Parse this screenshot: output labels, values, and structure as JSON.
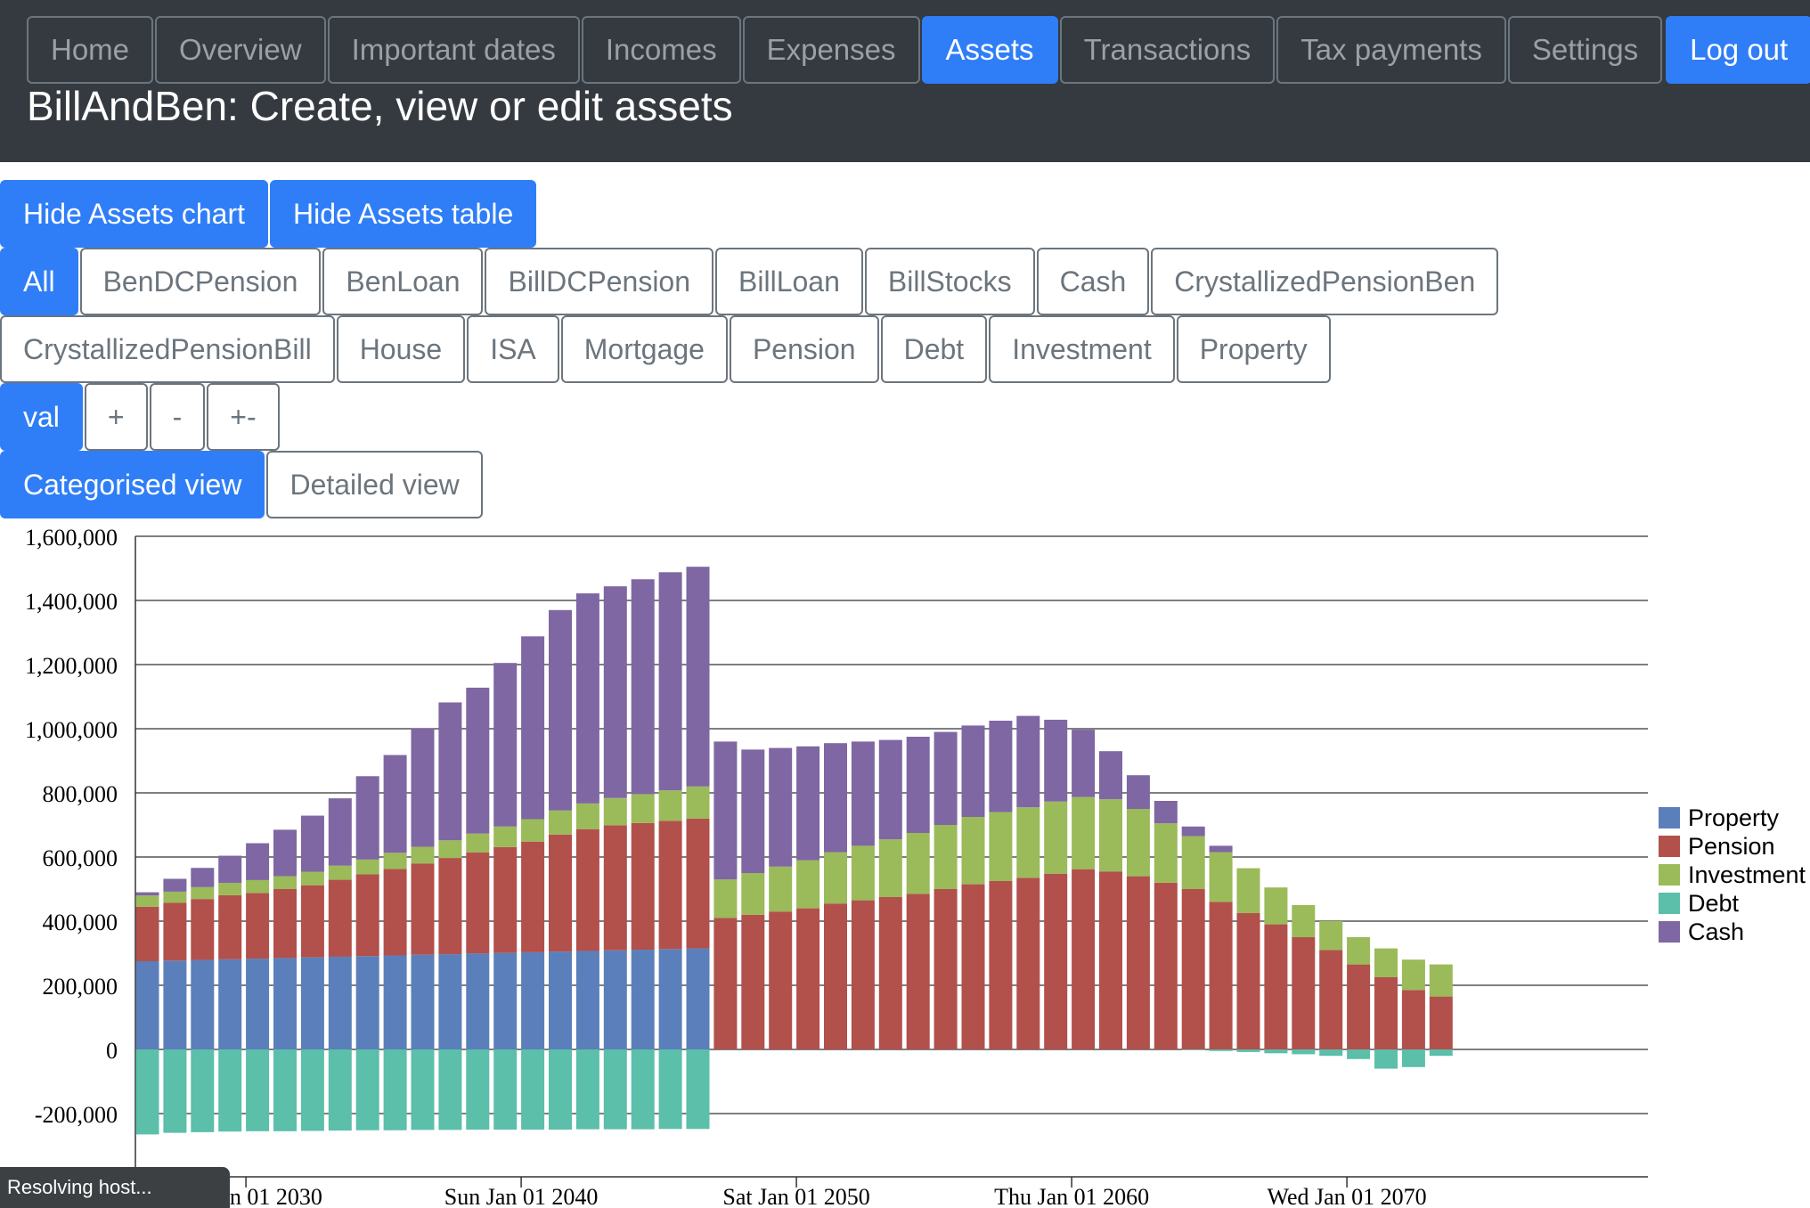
{
  "nav": {
    "items": [
      {
        "label": "Home",
        "active": false
      },
      {
        "label": "Overview",
        "active": false
      },
      {
        "label": "Important dates",
        "active": false
      },
      {
        "label": "Incomes",
        "active": false
      },
      {
        "label": "Expenses",
        "active": false
      },
      {
        "label": "Assets",
        "active": true
      },
      {
        "label": "Transactions",
        "active": false
      },
      {
        "label": "Tax payments",
        "active": false
      },
      {
        "label": "Settings",
        "active": false
      }
    ],
    "logout_label": "Log out"
  },
  "page_title": "BillAndBen: Create, view or edit assets",
  "toggles": {
    "hide_chart": "Hide Assets chart",
    "hide_table": "Hide Assets table"
  },
  "filters": {
    "row1": [
      "All",
      "BenDCPension",
      "BenLoan",
      "BillDCPension",
      "BillLoan",
      "BillStocks",
      "Cash",
      "CrystallizedPensionBen"
    ],
    "row2": [
      "CrystallizedPensionBill",
      "House",
      "ISA",
      "Mortgage",
      "Pension",
      "Debt",
      "Investment",
      "Property"
    ],
    "selected": "All"
  },
  "value_modes": {
    "items": [
      "val",
      "+",
      "-",
      "+-"
    ],
    "selected": "val"
  },
  "views": {
    "categorised": "Categorised view",
    "detailed": "Detailed view",
    "selected": "categorised"
  },
  "chart_data": {
    "type": "bar",
    "stacked": true,
    "x_start_year": 2026,
    "years": [
      2026,
      2027,
      2028,
      2029,
      2030,
      2031,
      2032,
      2033,
      2034,
      2035,
      2036,
      2037,
      2038,
      2039,
      2040,
      2041,
      2042,
      2043,
      2044,
      2045,
      2046,
      2047,
      2048,
      2049,
      2050,
      2051,
      2052,
      2053,
      2054,
      2055,
      2056,
      2057,
      2058,
      2059,
      2060,
      2061,
      2062,
      2063,
      2064,
      2065,
      2066,
      2067,
      2068,
      2069,
      2070,
      2071,
      2072,
      2073,
      2074,
      2075,
      2076,
      2077,
      2078,
      2079,
      2080,
      2081,
      2082
    ],
    "ylim": [
      -400000,
      1600000
    ],
    "yticks": [
      {
        "value": 1600000,
        "label": "1,600,000"
      },
      {
        "value": 1400000,
        "label": "1,400,000"
      },
      {
        "value": 1200000,
        "label": "1,200,000"
      },
      {
        "value": 1000000,
        "label": "1,000,000"
      },
      {
        "value": 800000,
        "label": "800,000"
      },
      {
        "value": 600000,
        "label": "600,000"
      },
      {
        "value": 400000,
        "label": "400,000"
      },
      {
        "value": 200000,
        "label": "200,000"
      },
      {
        "value": 0,
        "label": "0"
      },
      {
        "value": -200000,
        "label": "-200,000"
      }
    ],
    "xticks": [
      {
        "year": 2030,
        "label": "Tue Jan 01 2030"
      },
      {
        "year": 2040,
        "label": "Sun Jan 01 2040"
      },
      {
        "year": 2050,
        "label": "Sat Jan 01 2050"
      },
      {
        "year": 2060,
        "label": "Thu Jan 01 2060"
      },
      {
        "year": 2070,
        "label": "Wed Jan 01 2070"
      }
    ],
    "legend_position": "right",
    "legend": [
      {
        "name": "Property",
        "color": "#5b7fba"
      },
      {
        "name": "Pension",
        "color": "#b2504c"
      },
      {
        "name": "Investment",
        "color": "#9bba59"
      },
      {
        "name": "Debt",
        "color": "#5bbfaa"
      },
      {
        "name": "Cash",
        "color": "#7e67a2"
      }
    ],
    "series": [
      {
        "name": "Property",
        "color": "#5b7fba",
        "values": [
          275000,
          277000,
          279000,
          281000,
          283000,
          285000,
          287000,
          289000,
          291000,
          293000,
          295000,
          297000,
          299000,
          301000,
          303000,
          305000,
          307000,
          309000,
          311000,
          313000,
          315000,
          0,
          0,
          0,
          0,
          0,
          0,
          0,
          0,
          0,
          0,
          0,
          0,
          0,
          0,
          0,
          0,
          0,
          0,
          0,
          0,
          0,
          0,
          0,
          0,
          0,
          0,
          0,
          0,
          0,
          0,
          0,
          0,
          0,
          0,
          0,
          0
        ]
      },
      {
        "name": "Pension",
        "color": "#b2504c",
        "values": [
          170000,
          180000,
          190000,
          200000,
          205000,
          215000,
          225000,
          240000,
          255000,
          270000,
          285000,
          300000,
          315000,
          330000,
          345000,
          365000,
          380000,
          390000,
          395000,
          400000,
          405000,
          410000,
          420000,
          430000,
          440000,
          455000,
          465000,
          475000,
          485000,
          500000,
          515000,
          525000,
          535000,
          548000,
          562000,
          555000,
          540000,
          520000,
          500000,
          460000,
          425000,
          390000,
          350000,
          310000,
          265000,
          225000,
          185000,
          165000,
          0,
          0,
          0,
          0,
          0,
          0,
          0,
          0,
          0
        ]
      },
      {
        "name": "Investment",
        "color": "#9bba59",
        "values": [
          35000,
          35000,
          37000,
          38000,
          40000,
          40000,
          42000,
          44000,
          46000,
          50000,
          52000,
          55000,
          59000,
          64000,
          70000,
          75000,
          80000,
          85000,
          90000,
          95000,
          100000,
          120000,
          130000,
          140000,
          150000,
          160000,
          170000,
          180000,
          190000,
          200000,
          210000,
          215000,
          220000,
          225000,
          225000,
          225000,
          210000,
          185000,
          165000,
          155000,
          140000,
          115000,
          100000,
          90000,
          85000,
          90000,
          95000,
          100000,
          0,
          0,
          0,
          0,
          0,
          0,
          0,
          0,
          0
        ]
      },
      {
        "name": "Cash",
        "color": "#7e67a2",
        "values": [
          10000,
          40000,
          60000,
          85000,
          115000,
          145000,
          175000,
          210000,
          260000,
          305000,
          370000,
          430000,
          455000,
          510000,
          570000,
          625000,
          655000,
          660000,
          670000,
          680000,
          685000,
          430000,
          385000,
          370000,
          355000,
          340000,
          325000,
          310000,
          300000,
          290000,
          285000,
          285000,
          285000,
          255000,
          210000,
          150000,
          105000,
          70000,
          30000,
          20000,
          0,
          0,
          0,
          0,
          0,
          0,
          0,
          0,
          0,
          0,
          0,
          0,
          0,
          0,
          0,
          0,
          0
        ]
      },
      {
        "name": "Debt",
        "color": "#5bbfaa",
        "values": [
          -265000,
          -260000,
          -258000,
          -256000,
          -255000,
          -255000,
          -254000,
          -253000,
          -252000,
          -252000,
          -251000,
          -251000,
          -250000,
          -250000,
          -250000,
          -250000,
          -249000,
          -249000,
          -249000,
          -248000,
          -248000,
          0,
          0,
          0,
          0,
          0,
          0,
          0,
          0,
          0,
          0,
          0,
          0,
          0,
          0,
          0,
          0,
          0,
          -2000,
          -5000,
          -8000,
          -12000,
          -15000,
          -20000,
          -30000,
          -60000,
          -55000,
          -20000,
          0,
          0,
          0,
          0,
          0,
          0,
          0,
          0,
          0
        ]
      }
    ]
  },
  "status_text": "Resolving host..."
}
